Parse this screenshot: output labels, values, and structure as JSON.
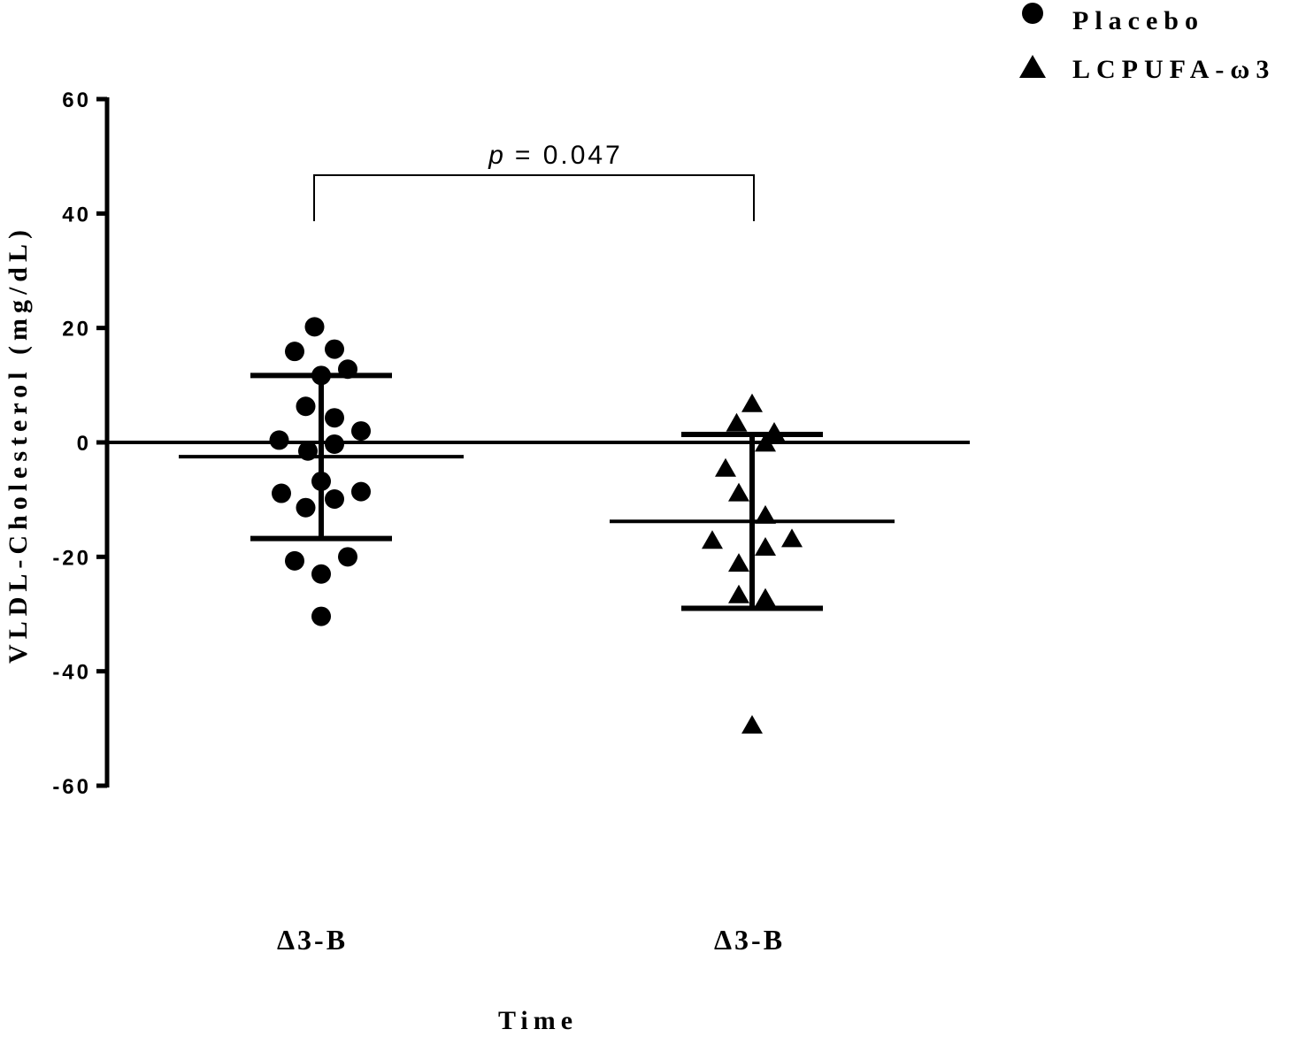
{
  "chart_data": {
    "type": "scatter",
    "xlabel": "Time",
    "ylabel": "VLDL-Cholesterol (mg/dL)",
    "ylim": [
      -60,
      60
    ],
    "yticks": [
      60,
      40,
      20,
      0,
      -20,
      -40,
      -60
    ],
    "categories": [
      "Δ3-B",
      "Δ3-B"
    ],
    "legend": {
      "position": "top-right",
      "entries": [
        {
          "label": "Placebo",
          "marker": "circle"
        },
        {
          "label": "LCPUFA-ω3",
          "marker": "triangle"
        }
      ]
    },
    "reference_line_y": 0,
    "annotation": {
      "prefix": "p",
      "text": "= 0.047"
    },
    "series": [
      {
        "name": "Placebo",
        "marker": "circle",
        "category_index": 0,
        "mean": -2.5,
        "sd_upper": 11.7,
        "sd_lower": -16.8,
        "points": [
          {
            "dx": -0.03,
            "y": 20.2
          },
          {
            "dx": -0.12,
            "y": 15.9
          },
          {
            "dx": 0.06,
            "y": 16.3
          },
          {
            "dx": 0.12,
            "y": 12.8
          },
          {
            "dx": 0.0,
            "y": 11.7
          },
          {
            "dx": -0.07,
            "y": 6.3
          },
          {
            "dx": 0.06,
            "y": 4.3
          },
          {
            "dx": 0.18,
            "y": 2.0
          },
          {
            "dx": -0.19,
            "y": 0.4
          },
          {
            "dx": 0.06,
            "y": -0.3
          },
          {
            "dx": -0.06,
            "y": -1.5
          },
          {
            "dx": 0.0,
            "y": -6.8
          },
          {
            "dx": -0.18,
            "y": -8.9
          },
          {
            "dx": 0.18,
            "y": -8.6
          },
          {
            "dx": 0.06,
            "y": -9.9
          },
          {
            "dx": -0.07,
            "y": -11.4
          },
          {
            "dx": -0.12,
            "y": -20.7
          },
          {
            "dx": 0.12,
            "y": -20.0
          },
          {
            "dx": 0.0,
            "y": -23.0
          },
          {
            "dx": 0.0,
            "y": -30.4
          }
        ]
      },
      {
        "name": "LCPUFA-ω3",
        "marker": "triangle",
        "category_index": 1,
        "mean": -13.8,
        "sd_upper": 1.4,
        "sd_lower": -29.0,
        "points": [
          {
            "dx": 0.0,
            "y": 6.6
          },
          {
            "dx": -0.07,
            "y": 3.2
          },
          {
            "dx": 0.1,
            "y": 1.6
          },
          {
            "dx": 0.06,
            "y": -0.3
          },
          {
            "dx": -0.12,
            "y": -4.7
          },
          {
            "dx": -0.06,
            "y": -9.0
          },
          {
            "dx": 0.06,
            "y": -12.9
          },
          {
            "dx": -0.18,
            "y": -17.3
          },
          {
            "dx": 0.18,
            "y": -17.0
          },
          {
            "dx": 0.06,
            "y": -18.5
          },
          {
            "dx": -0.06,
            "y": -21.3
          },
          {
            "dx": -0.06,
            "y": -26.8
          },
          {
            "dx": 0.06,
            "y": -27.4
          },
          {
            "dx": 0.0,
            "y": -49.6
          }
        ]
      }
    ]
  }
}
